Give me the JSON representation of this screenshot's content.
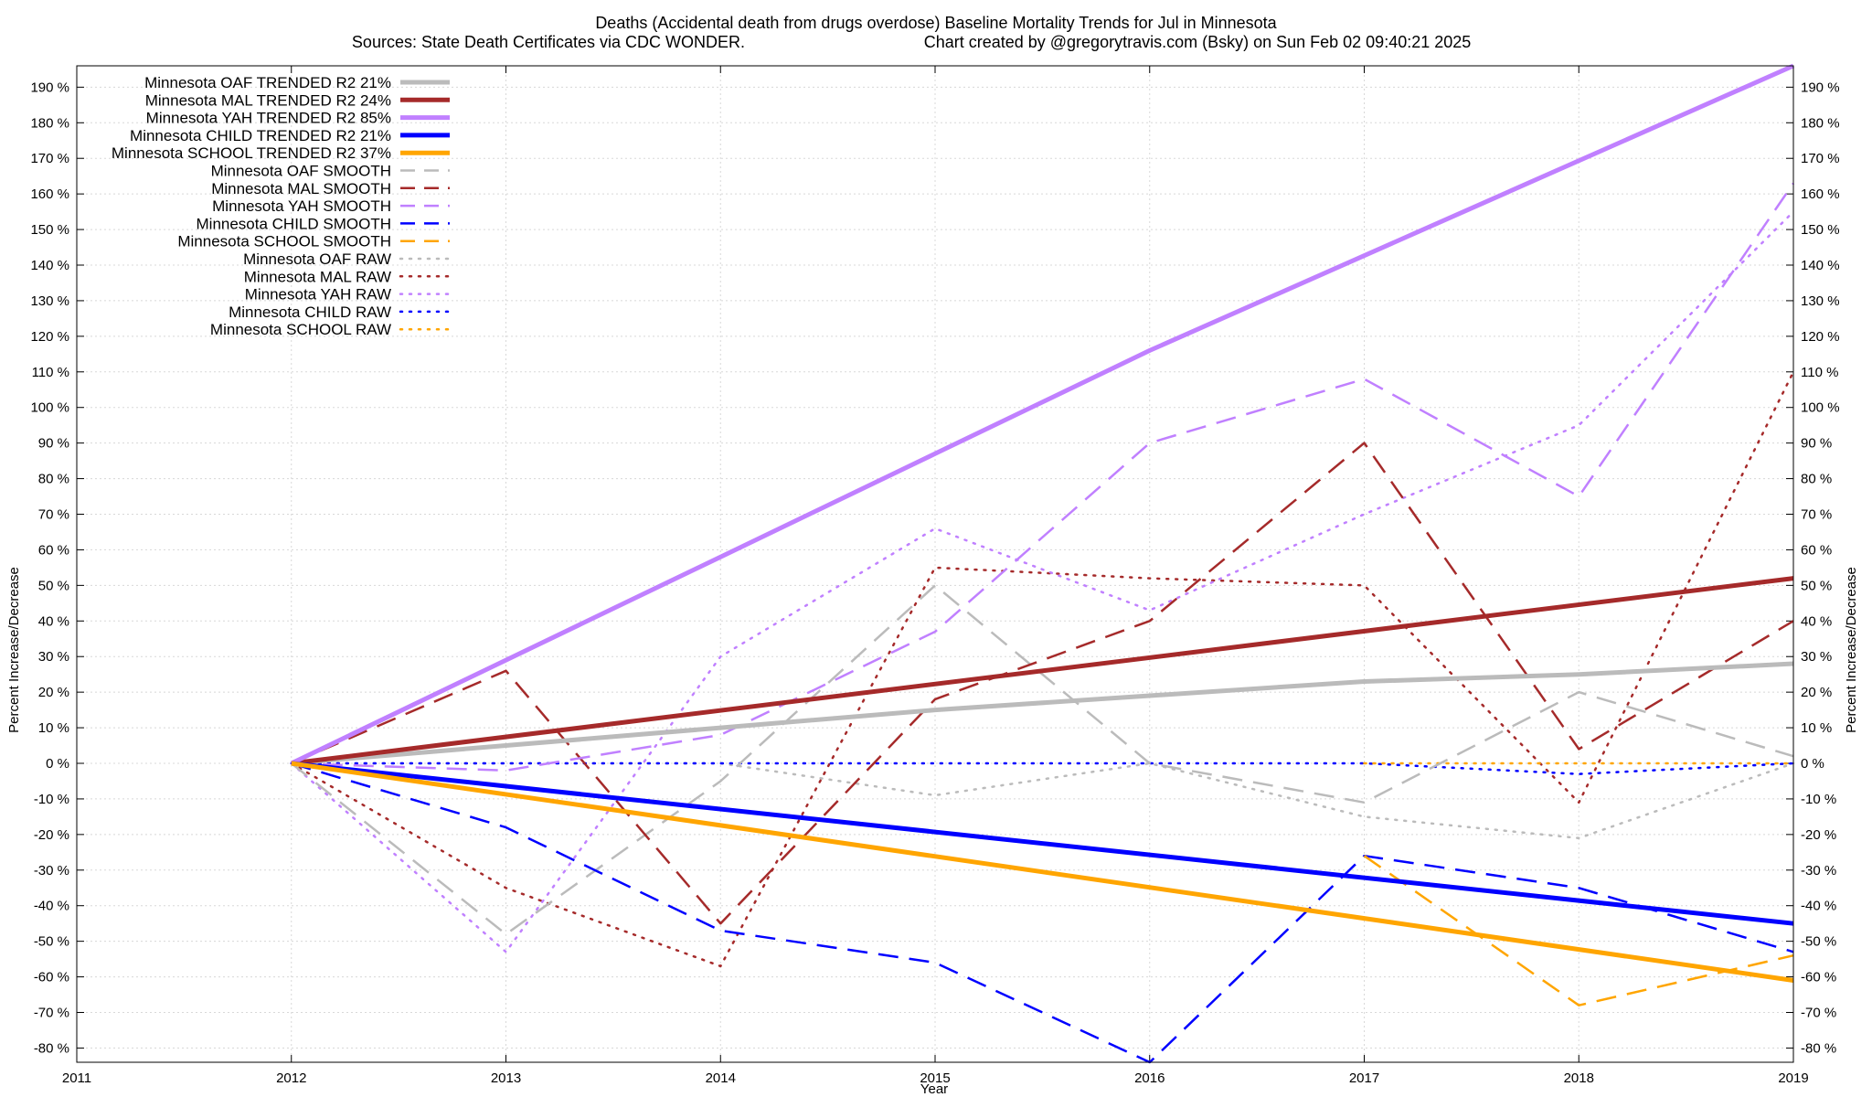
{
  "chart_data": {
    "type": "line",
    "title": "Deaths (Accidental death from drugs overdose)  Baseline Mortality Trends for Jul in Minnesota",
    "subtitle_left": "Sources: State Death Certificates via CDC WONDER.",
    "subtitle_right": "Chart created by @gregorytravis.com (Bsky) on Sun Feb 02 09:40:21 2025",
    "xlabel": "Year",
    "ylabel_left": "Percent Increase/Decrease",
    "ylabel_right": "Percent Increase/Decrease",
    "xlim": [
      2011,
      2019
    ],
    "ylim": [
      -84,
      196
    ],
    "x_ticks": [
      "2011",
      "2012",
      "2013",
      "2014",
      "2015",
      "2016",
      "2017",
      "2018",
      "2019"
    ],
    "y_ticks": [
      "190 %",
      "180 %",
      "170 %",
      "160 %",
      "150 %",
      "140 %",
      "130 %",
      "120 %",
      "110 %",
      "100 %",
      "90 %",
      "80 %",
      "70 %",
      "60 %",
      "50 %",
      "40 %",
      "30 %",
      "20 %",
      "10 %",
      "0 %",
      "-10 %",
      "-20 %",
      "-30 %",
      "-40 %",
      "-50 %",
      "-60 %",
      "-70 %",
      "-80 %"
    ],
    "grid": true,
    "legend_position": "top-left",
    "series": [
      {
        "name": "Minnesota OAF TRENDED R2  21%",
        "style": "solid",
        "color": "#bbbbbb",
        "x": [
          2012,
          2013,
          2014,
          2015,
          2016,
          2017,
          2018,
          2019
        ],
        "y": [
          0,
          5,
          10,
          15,
          19,
          23,
          25,
          28
        ]
      },
      {
        "name": "Minnesota MAL TRENDED R2  24%",
        "style": "solid",
        "color": "#a52a2a",
        "x": [
          2012,
          2019
        ],
        "y": [
          0,
          52
        ]
      },
      {
        "name": "Minnesota YAH TRENDED R2  85%",
        "style": "solid",
        "color": "#c080ff",
        "x": [
          2012,
          2013,
          2014,
          2015,
          2016,
          2019
        ],
        "y": [
          0,
          29,
          58,
          87,
          116,
          196
        ]
      },
      {
        "name": "Minnesota CHILD TRENDED R2  21%",
        "style": "solid",
        "color": "#0000ff",
        "x": [
          2012,
          2019
        ],
        "y": [
          0,
          -45
        ]
      },
      {
        "name": "Minnesota SCHOOL TRENDED R2  37%",
        "style": "solid",
        "color": "#ffa500",
        "x": [
          2012,
          2019
        ],
        "y": [
          0,
          -61
        ]
      },
      {
        "name": "Minnesota OAF SMOOTH",
        "style": "dashed",
        "color": "#bbbbbb",
        "x": [
          2012,
          2013,
          2014,
          2015,
          2016,
          2017,
          2018,
          2019
        ],
        "y": [
          0,
          -48,
          -5,
          50,
          0,
          -11,
          20,
          2
        ]
      },
      {
        "name": "Minnesota MAL SMOOTH",
        "style": "dashed",
        "color": "#a52a2a",
        "x": [
          2012,
          2013,
          2014,
          2015,
          2016,
          2017,
          2018,
          2019
        ],
        "y": [
          0,
          26,
          -45,
          18,
          40,
          90,
          4,
          40
        ]
      },
      {
        "name": "Minnesota YAH SMOOTH",
        "style": "dashed",
        "color": "#c080ff",
        "x": [
          2012,
          2013,
          2014,
          2015,
          2016,
          2017,
          2018,
          2019
        ],
        "y": [
          0,
          -2,
          8,
          37,
          90,
          108,
          75,
          163
        ]
      },
      {
        "name": "Minnesota CHILD SMOOTH",
        "style": "dashed",
        "color": "#0000ff",
        "x": [
          2012,
          2013,
          2014,
          2015,
          2016,
          2017,
          2018,
          2019
        ],
        "y": [
          0,
          -18,
          -47,
          -56,
          -84,
          -26,
          -35,
          -53
        ]
      },
      {
        "name": "Minnesota SCHOOL SMOOTH",
        "style": "dashed",
        "color": "#ffa500",
        "x": [
          2017,
          2018,
          2019
        ],
        "y": [
          -26,
          -68,
          -54
        ]
      },
      {
        "name": "Minnesota OAF RAW",
        "style": "dotted",
        "color": "#bbbbbb",
        "x": [
          2012,
          2013,
          2014,
          2015,
          2016,
          2017,
          2018,
          2019
        ],
        "y": [
          0,
          0,
          0,
          -9,
          0,
          -15,
          -21,
          0
        ]
      },
      {
        "name": "Minnesota MAL RAW",
        "style": "dotted",
        "color": "#a52a2a",
        "x": [
          2012,
          2013,
          2014,
          2015,
          2016,
          2017,
          2018,
          2019
        ],
        "y": [
          0,
          -35,
          -57,
          55,
          52,
          50,
          -11,
          110
        ]
      },
      {
        "name": "Minnesota YAH RAW",
        "style": "dotted",
        "color": "#c080ff",
        "x": [
          2012,
          2013,
          2014,
          2015,
          2016,
          2017,
          2018,
          2019
        ],
        "y": [
          0,
          -53,
          30,
          66,
          43,
          70,
          95,
          155
        ]
      },
      {
        "name": "Minnesota CHILD RAW",
        "style": "dotted",
        "color": "#0000ff",
        "x": [
          2012,
          2013,
          2014,
          2015,
          2016,
          2017,
          2018,
          2019
        ],
        "y": [
          0,
          0,
          0,
          0,
          0,
          0,
          -3,
          0
        ]
      },
      {
        "name": "Minnesota SCHOOL RAW",
        "style": "dotted",
        "color": "#ffa500",
        "x": [
          2017,
          2018,
          2019
        ],
        "y": [
          0,
          0,
          0
        ]
      }
    ]
  }
}
